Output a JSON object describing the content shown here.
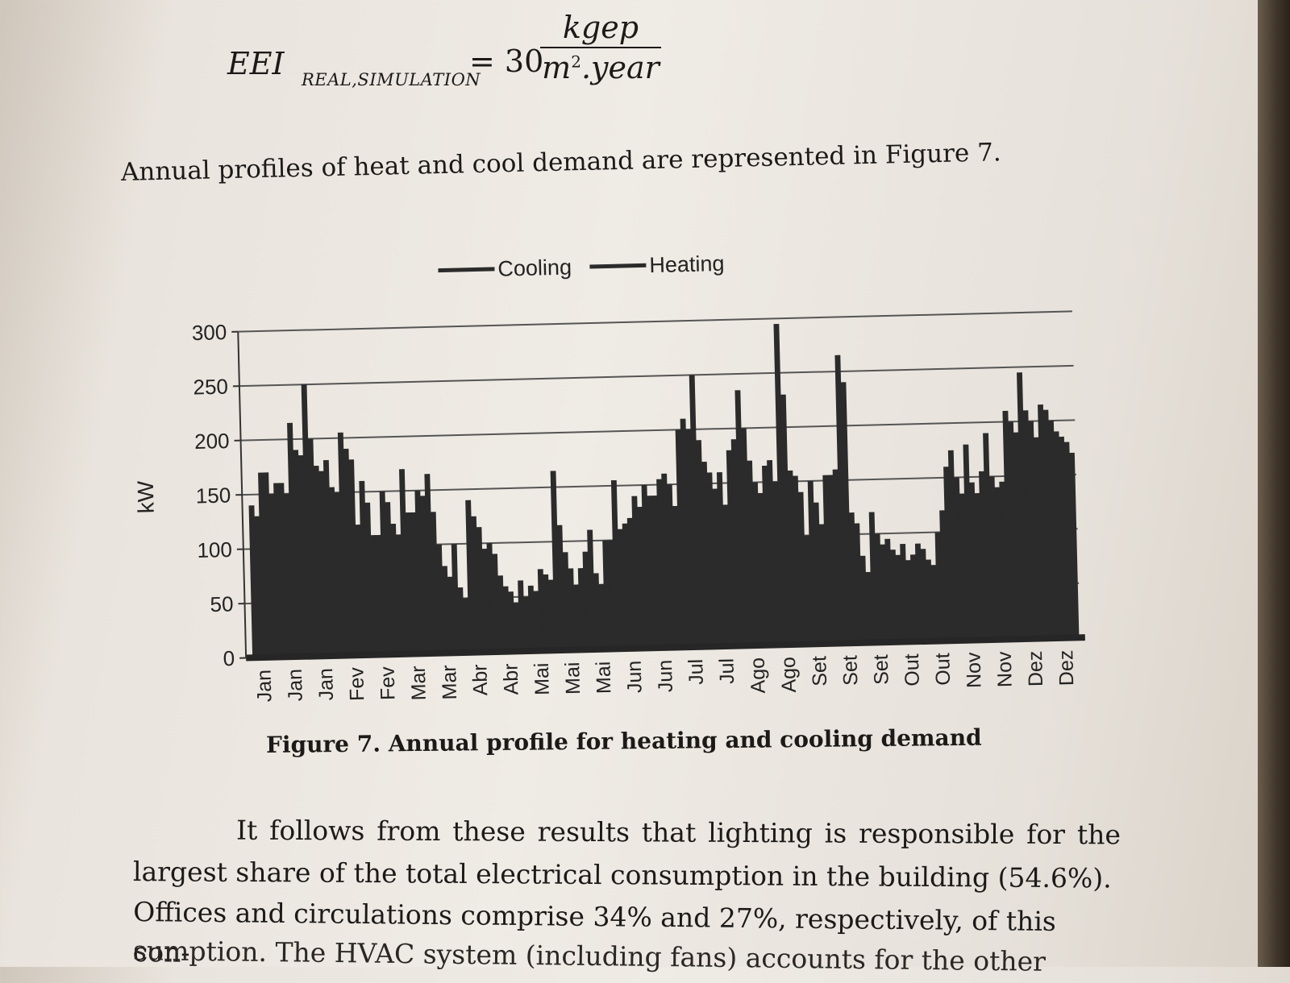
{
  "formula": {
    "lhs": "EEI",
    "lhs_subscript": "REAL,SIMULATION",
    "equals": "= 30",
    "numerator": "kgep",
    "denominator_base": "m",
    "denominator_exponent": "2",
    "denominator_rest": ".year"
  },
  "intro_text": "Annual profiles of heat and cool demand are represented in Figure 7.",
  "chart_data": {
    "type": "bar",
    "ylabel": "kW",
    "ylim": [
      0,
      300
    ],
    "yticks": [
      "0",
      "50",
      "100",
      "150",
      "200",
      "250",
      "300"
    ],
    "grid": true,
    "legend_placement": "top",
    "legend": [
      "Cooling",
      "Heating"
    ],
    "colors": {
      "bars": "#2b2b2b",
      "grid": "#555555",
      "axis": "#333333"
    },
    "xticks": [
      "Jan",
      "Jan",
      "Jan",
      "Fev",
      "Fev",
      "Mar",
      "Mar",
      "Abr",
      "Abr",
      "Mai",
      "Mai",
      "Mai",
      "Jun",
      "Jun",
      "Jul",
      "Jul",
      "Ago",
      "Ago",
      "Set",
      "Set",
      "Set",
      "Out",
      "Out",
      "Nov",
      "Nov",
      "Dez",
      "Dez"
    ],
    "values": [
      140,
      130,
      170,
      170,
      150,
      160,
      160,
      150,
      215,
      190,
      185,
      250,
      200,
      175,
      170,
      180,
      155,
      150,
      205,
      190,
      180,
      120,
      160,
      140,
      110,
      110,
      150,
      140,
      120,
      110,
      170,
      130,
      130,
      150,
      145,
      165,
      130,
      100,
      80,
      70,
      100,
      60,
      50,
      140,
      125,
      115,
      95,
      100,
      90,
      70,
      60,
      55,
      45,
      65,
      50,
      60,
      55,
      75,
      70,
      65,
      165,
      115,
      90,
      75,
      60,
      75,
      90,
      110,
      70,
      60,
      100,
      100,
      155,
      110,
      115,
      120,
      140,
      130,
      150,
      140,
      140,
      155,
      160,
      150,
      130,
      200,
      210,
      200,
      250,
      190,
      170,
      160,
      145,
      160,
      130,
      180,
      190,
      235,
      200,
      170,
      150,
      140,
      165,
      170,
      150,
      295,
      230,
      160,
      155,
      140,
      100,
      150,
      130,
      110,
      155,
      155,
      160,
      265,
      240,
      120,
      110,
      80,
      65,
      120,
      100,
      90,
      95,
      85,
      80,
      90,
      75,
      80,
      90,
      85,
      75,
      70,
      100,
      120,
      160,
      175,
      150,
      135,
      180,
      145,
      135,
      155,
      190,
      150,
      140,
      145,
      210,
      200,
      190,
      245,
      210,
      200,
      185,
      215,
      210,
      200,
      190,
      185,
      180,
      170
    ]
  },
  "caption": "Figure 7. Annual profile for heating and cooling demand",
  "paragraph": {
    "line1_words": [
      "It",
      "follows",
      "from",
      "these",
      "results",
      "that",
      "lighting",
      "is",
      "responsible",
      "for",
      "the"
    ],
    "line2": "largest share of the total electrical consumption in the building (54.6%).",
    "line3": "Offices and circulations comprise 34% and 27%, respectively, of this con-",
    "line4": "sumption. The HVAC system (including fans) accounts for the other"
  }
}
